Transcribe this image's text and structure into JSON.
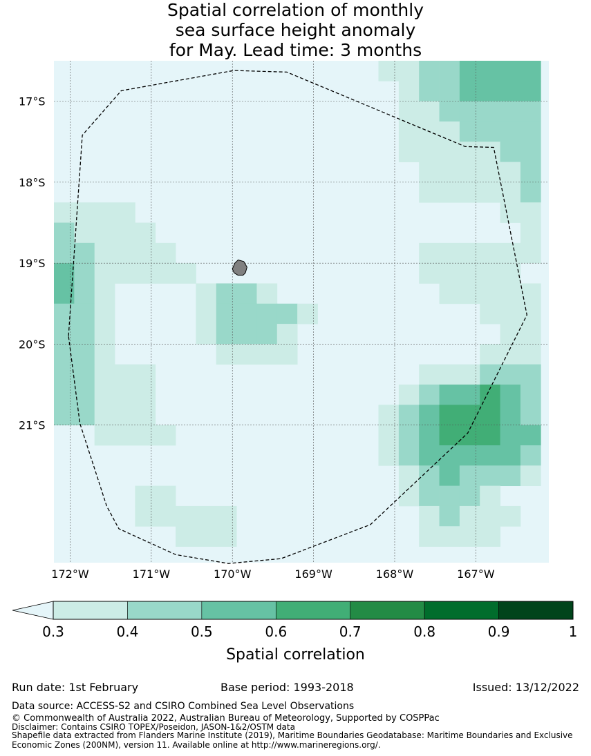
{
  "title": {
    "line1": "Spatial correlation of monthly",
    "line2": "sea surface height anomaly",
    "line3": "for May. Lead time: 3 months"
  },
  "map": {
    "lat_labels": [
      "17°S",
      "18°S",
      "19°S",
      "20°S",
      "21°S"
    ],
    "lon_labels": [
      "172°W",
      "171°W",
      "170°W",
      "169°W",
      "168°W",
      "167°W"
    ],
    "lat_values": [
      -17,
      -18,
      -19,
      -20,
      -21
    ],
    "lon_values": [
      -172,
      -171,
      -170,
      -169,
      -168,
      -167
    ],
    "extent": {
      "lon_min": -172.2,
      "lon_max": -166.1,
      "lat_min": -22.7,
      "lat_max": -16.5
    },
    "grid_cell_deg": 0.25,
    "correlation_field": [
      [
        0,
        0,
        0,
        0,
        0,
        0,
        0,
        0,
        0,
        0,
        0,
        0,
        0,
        0,
        0,
        0,
        1,
        1,
        2,
        2,
        3,
        3,
        3,
        3
      ],
      [
        0,
        0,
        0,
        0,
        0,
        0,
        0,
        0,
        0,
        0,
        0,
        0,
        0,
        0,
        0,
        0,
        0,
        1,
        2,
        2,
        3,
        3,
        3,
        3
      ],
      [
        0,
        0,
        0,
        0,
        0,
        0,
        0,
        0,
        0,
        0,
        0,
        0,
        0,
        0,
        0,
        0,
        0,
        1,
        1,
        2,
        2,
        2,
        2,
        2
      ],
      [
        0,
        0,
        0,
        0,
        0,
        0,
        0,
        0,
        0,
        0,
        0,
        0,
        0,
        0,
        0,
        0,
        0,
        1,
        1,
        1,
        2,
        2,
        2,
        2
      ],
      [
        0,
        0,
        0,
        0,
        0,
        0,
        0,
        0,
        0,
        0,
        0,
        0,
        0,
        0,
        0,
        0,
        0,
        1,
        1,
        1,
        1,
        1,
        2,
        2
      ],
      [
        0,
        0,
        0,
        0,
        0,
        0,
        0,
        0,
        0,
        0,
        0,
        0,
        0,
        0,
        0,
        0,
        0,
        0,
        1,
        1,
        1,
        1,
        1,
        2
      ],
      [
        0,
        0,
        0,
        0,
        0,
        0,
        0,
        0,
        0,
        0,
        0,
        0,
        0,
        0,
        0,
        0,
        0,
        0,
        1,
        1,
        1,
        1,
        1,
        2
      ],
      [
        1,
        1,
        1,
        1,
        0,
        0,
        0,
        0,
        0,
        0,
        0,
        0,
        0,
        0,
        0,
        0,
        0,
        0,
        0,
        0,
        0,
        0,
        1,
        1
      ],
      [
        2,
        1,
        1,
        1,
        1,
        0,
        0,
        0,
        0,
        0,
        0,
        0,
        0,
        0,
        0,
        0,
        0,
        0,
        0,
        0,
        0,
        0,
        0,
        1
      ],
      [
        2,
        2,
        1,
        1,
        1,
        1,
        0,
        0,
        0,
        0,
        0,
        0,
        0,
        0,
        0,
        0,
        0,
        0,
        1,
        1,
        1,
        1,
        1,
        1
      ],
      [
        3,
        2,
        1,
        1,
        1,
        1,
        1,
        0,
        0,
        0,
        0,
        0,
        0,
        0,
        0,
        0,
        0,
        0,
        1,
        1,
        1,
        1,
        1,
        0
      ],
      [
        3,
        2,
        1,
        0,
        0,
        0,
        0,
        1,
        2,
        2,
        1,
        0,
        0,
        0,
        0,
        0,
        0,
        0,
        0,
        1,
        1,
        1,
        1,
        1
      ],
      [
        2,
        2,
        1,
        0,
        0,
        0,
        0,
        1,
        2,
        2,
        2,
        2,
        1,
        0,
        0,
        0,
        0,
        0,
        0,
        0,
        0,
        1,
        1,
        1
      ],
      [
        2,
        2,
        1,
        0,
        0,
        0,
        0,
        1,
        2,
        2,
        2,
        1,
        0,
        0,
        0,
        0,
        0,
        0,
        0,
        0,
        0,
        0,
        1,
        1
      ],
      [
        2,
        2,
        1,
        0,
        0,
        0,
        0,
        0,
        1,
        1,
        1,
        1,
        0,
        0,
        0,
        0,
        0,
        0,
        0,
        0,
        0,
        1,
        1,
        1
      ],
      [
        2,
        2,
        1,
        1,
        1,
        0,
        0,
        0,
        0,
        0,
        0,
        0,
        0,
        0,
        0,
        0,
        0,
        0,
        1,
        1,
        1,
        2,
        2,
        2
      ],
      [
        2,
        2,
        1,
        1,
        1,
        0,
        0,
        0,
        0,
        0,
        0,
        0,
        0,
        0,
        0,
        0,
        0,
        1,
        2,
        3,
        3,
        4,
        3,
        2
      ],
      [
        2,
        2,
        1,
        1,
        1,
        0,
        0,
        0,
        0,
        0,
        0,
        0,
        0,
        0,
        0,
        0,
        1,
        2,
        3,
        4,
        4,
        4,
        3,
        2
      ],
      [
        0,
        0,
        1,
        1,
        1,
        1,
        0,
        0,
        0,
        0,
        0,
        0,
        0,
        0,
        0,
        0,
        1,
        2,
        3,
        4,
        4,
        4,
        3,
        3
      ],
      [
        0,
        0,
        0,
        0,
        0,
        0,
        0,
        0,
        0,
        0,
        0,
        0,
        0,
        0,
        0,
        0,
        1,
        2,
        3,
        3,
        3,
        3,
        3,
        2
      ],
      [
        0,
        0,
        0,
        0,
        0,
        0,
        0,
        0,
        0,
        0,
        0,
        0,
        0,
        0,
        0,
        0,
        0,
        1,
        2,
        3,
        2,
        2,
        2,
        1
      ],
      [
        0,
        0,
        0,
        0,
        1,
        1,
        0,
        0,
        0,
        0,
        0,
        0,
        0,
        0,
        0,
        0,
        0,
        1,
        2,
        2,
        2,
        1,
        0,
        0
      ],
      [
        0,
        0,
        0,
        0,
        1,
        1,
        1,
        1,
        1,
        0,
        0,
        0,
        0,
        0,
        0,
        0,
        0,
        0,
        1,
        2,
        1,
        1,
        1,
        0
      ],
      [
        0,
        0,
        0,
        0,
        0,
        0,
        1,
        1,
        1,
        0,
        0,
        0,
        0,
        0,
        0,
        0,
        0,
        0,
        1,
        1,
        1,
        1,
        0,
        0
      ]
    ],
    "eez_boundary": [
      [
        -172.02,
        -19.9
      ],
      [
        -171.85,
        -17.42
      ],
      [
        -171.37,
        -16.87
      ],
      [
        -169.98,
        -16.62
      ],
      [
        -169.33,
        -16.64
      ],
      [
        -167.13,
        -17.56
      ],
      [
        -166.78,
        -17.57
      ],
      [
        -166.37,
        -19.64
      ],
      [
        -167.1,
        -21.1
      ],
      [
        -168.3,
        -22.23
      ],
      [
        -169.4,
        -22.65
      ],
      [
        -170.05,
        -22.71
      ],
      [
        -170.7,
        -22.6
      ],
      [
        -171.4,
        -22.28
      ],
      [
        -171.55,
        -22.0
      ],
      [
        -171.88,
        -20.98
      ],
      [
        -172.02,
        -19.9
      ]
    ],
    "island_name": "Niue",
    "island_outline": [
      [
        -169.93,
        -18.96
      ],
      [
        -169.86,
        -18.98
      ],
      [
        -169.82,
        -19.05
      ],
      [
        -169.84,
        -19.12
      ],
      [
        -169.87,
        -19.15
      ],
      [
        -169.93,
        -19.15
      ],
      [
        -169.98,
        -19.12
      ],
      [
        -170.0,
        -19.07
      ],
      [
        -169.97,
        -19.0
      ],
      [
        -169.93,
        -18.96
      ]
    ]
  },
  "colorbar": {
    "ticks": [
      "0.3",
      "0.4",
      "0.5",
      "0.6",
      "0.7",
      "0.8",
      "0.9",
      "1"
    ],
    "colors": [
      "#ccece6",
      "#99d8c9",
      "#66c2a4",
      "#41ae76",
      "#238b45",
      "#006d2c",
      "#00441b"
    ],
    "below_min_color": "#e5f5f9",
    "label": "Spatial correlation"
  },
  "colors": {
    "eez_line": "#000000",
    "island_fill": "#808080",
    "grid_line": "#555555"
  },
  "info": {
    "run_date": "Run date: 1st February",
    "base_period": "Base period: 1993-2018",
    "issued": "Issued: 13/12/2022",
    "data_source": "Data source: ACCESS-S2 and CSIRO Combined Sea Level Observations",
    "copyright": "© Commonwealth of Australia 2022, Australian Bureau of Meteorology, Supported by COSPPac",
    "disclaimer": "Disclaimer: Contains CSIRO TOPEX/Poseidon, JASON-1&2/OSTM data",
    "shapefile": "Shapefile data extracted from Flanders Marine Institute (2019), Maritime Boundaries Geodatabase: Maritime Boundaries and Exclusive Economic Zones (200NM), version 11. Available online at http://www.marineregions.org/."
  }
}
